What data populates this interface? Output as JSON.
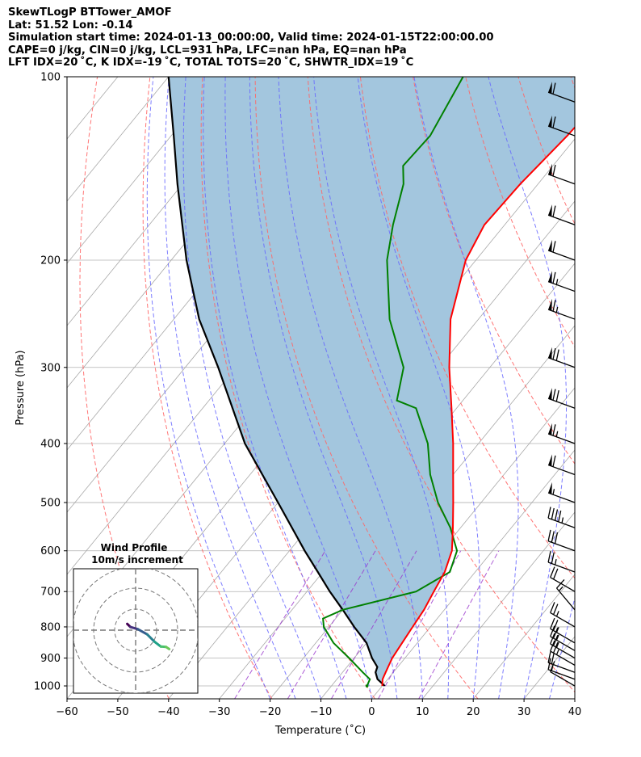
{
  "header": {
    "line1": "SkewTLogP BTTower_AMOF",
    "line2": "Lat: 51.52   Lon: -0.14",
    "line3": "Simulation start time: 2024-01-13_00:00:00, Valid time: 2024-01-15T22:00:00.00",
    "line4": "CAPE=0 j/kg, CIN=0 j/kg, LCL=931 hPa, LFC=nan hPa, EQ=nan hPa",
    "line5": "LFT IDX=20 ˚C, K IDX=-19 ˚C, TOTAL TOTS=20 ˚C, SHWTR_IDX=19 ˚C"
  },
  "hodograph": {
    "title": "Wind Profile",
    "subtitle": "10m/s increment",
    "u": [
      -4.0,
      -2.5,
      1.0,
      5.5,
      9.0,
      12.0,
      14.5,
      16.0
    ],
    "v": [
      3.0,
      1.5,
      0.5,
      -2.0,
      -5.5,
      -7.8,
      -8.0,
      -9.0
    ]
  },
  "chart_data": {
    "type": "line",
    "title": "",
    "xlabel": "Temperature (˚C)",
    "ylabel": "Pressure (hPa)",
    "xlim": [
      -60,
      40
    ],
    "ylim": [
      1050,
      100
    ],
    "y_scale": "log",
    "x_ticks": [
      -60,
      -50,
      -40,
      -30,
      -20,
      -10,
      0,
      10,
      20,
      30,
      40
    ],
    "y_ticks": [
      1000,
      900,
      800,
      700,
      600,
      500,
      400,
      300,
      200,
      100
    ],
    "grid": true,
    "colors": {
      "temperature": "#ff0000",
      "dewpoint": "#008000",
      "parcel": "#000000",
      "cape_shading": "#a3c6de",
      "dry_adiabats": "#ff6666",
      "moist_adiabats": "#6666ff",
      "mixing_ratio": "#9933cc",
      "isotherms": "#999999"
    },
    "series": [
      {
        "name": "",
        "pressure": [
          1000,
          975,
          950,
          925,
          900,
          850,
          800,
          750,
          700,
          650,
          600,
          550,
          500,
          450,
          400,
          350,
          300,
          250,
          200,
          175,
          150,
          125,
          100
        ],
        "values": [
          0.0,
          -1.0,
          -1.5,
          -2.0,
          -2.5,
          -3.0,
          -3.5,
          -4.0,
          -5.0,
          -6.0,
          -8.0,
          -11.5,
          -15.5,
          -20.0,
          -25.0,
          -31.0,
          -38.0,
          -45.5,
          -52.0,
          -54.0,
          -53.5,
          -52.0,
          -51.0
        ]
      },
      {
        "name": "",
        "pressure": [
          1000,
          975,
          950,
          900,
          850,
          800,
          775,
          750,
          700,
          650,
          600,
          550,
          500,
          450,
          400,
          350,
          340,
          300,
          250,
          200,
          175,
          150,
          140,
          125,
          100
        ],
        "values": [
          -3.0,
          -3.5,
          -6.0,
          -11.0,
          -16.5,
          -21.0,
          -22.5,
          -20.0,
          -8.5,
          -5.0,
          -7.0,
          -12.0,
          -18.5,
          -24.5,
          -30.0,
          -38.0,
          -43.0,
          -47.0,
          -57.5,
          -67.5,
          -72.0,
          -76.5,
          -79.5,
          -79.0,
          -82.0
        ]
      },
      {
        "name": "",
        "pressure": [
          1000,
          975,
          950,
          931,
          900,
          850,
          800,
          750,
          700,
          650,
          600,
          500,
          400,
          300,
          250,
          200,
          150,
          125,
          100
        ],
        "values": [
          0.5,
          -2.0,
          -3.5,
          -4.0,
          -6.5,
          -10.0,
          -15.0,
          -20.0,
          -25.5,
          -31.0,
          -37.0,
          -50.0,
          -66.0,
          -83.5,
          -95.0,
          -107.0,
          -121.0,
          -129.5,
          -140.0
        ]
      }
    ],
    "wind_barbs": {
      "pressure": [
        1000,
        975,
        950,
        925,
        900,
        875,
        850,
        800,
        750,
        700,
        650,
        600,
        550,
        500,
        450,
        400,
        350,
        300,
        250,
        225,
        200,
        175,
        150,
        125,
        110
      ],
      "speed_kt": [
        10,
        15,
        20,
        25,
        25,
        25,
        25,
        25,
        15,
        20,
        25,
        30,
        45,
        55,
        60,
        65,
        70,
        70,
        65,
        65,
        60,
        60,
        60,
        60,
        60
      ],
      "direction_deg": [
        300,
        290,
        290,
        300,
        300,
        300,
        300,
        300,
        320,
        300,
        290,
        290,
        290,
        290,
        290,
        290,
        290,
        290,
        290,
        290,
        290,
        290,
        290,
        290,
        290
      ]
    }
  }
}
